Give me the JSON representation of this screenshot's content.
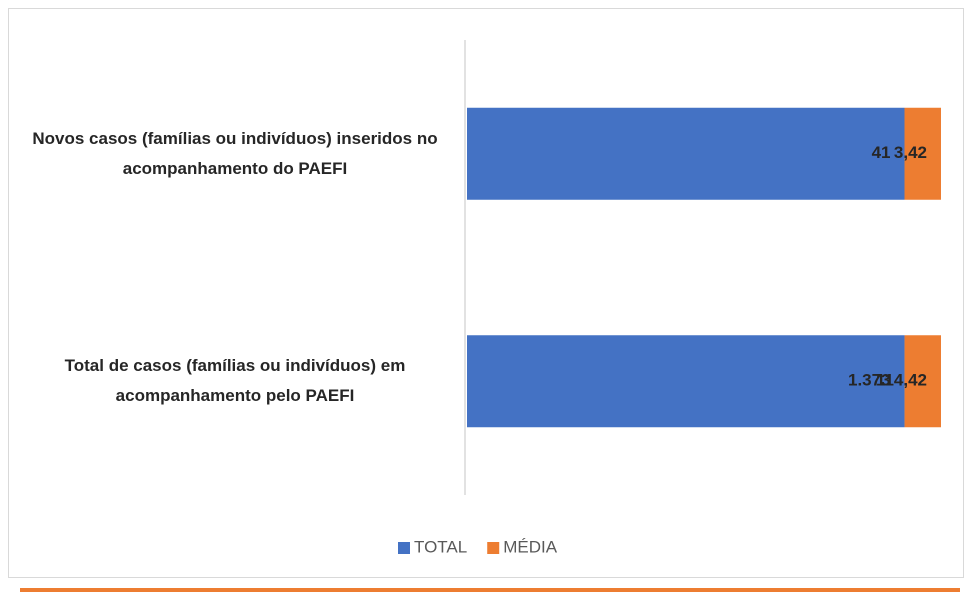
{
  "chart_data": {
    "type": "stacked_barh",
    "stacking": "percent",
    "categories": [
      "Novos casos (famílias ou indivíduos) inseridos no acompanhamento do PAEFI",
      "Total de casos (famílias ou indivíduos) em acompanhamento pelo PAEFI"
    ],
    "series": [
      {
        "name": "TOTAL",
        "color": "#4472c4",
        "values": [
          41,
          1373
        ],
        "value_labels": [
          "41",
          "1.373"
        ]
      },
      {
        "name": "MÉDIA",
        "color": "#ed7d31",
        "values": [
          3.42,
          114.42
        ],
        "value_labels": [
          "3,42",
          "114,42"
        ]
      }
    ],
    "legend": "bottom"
  }
}
